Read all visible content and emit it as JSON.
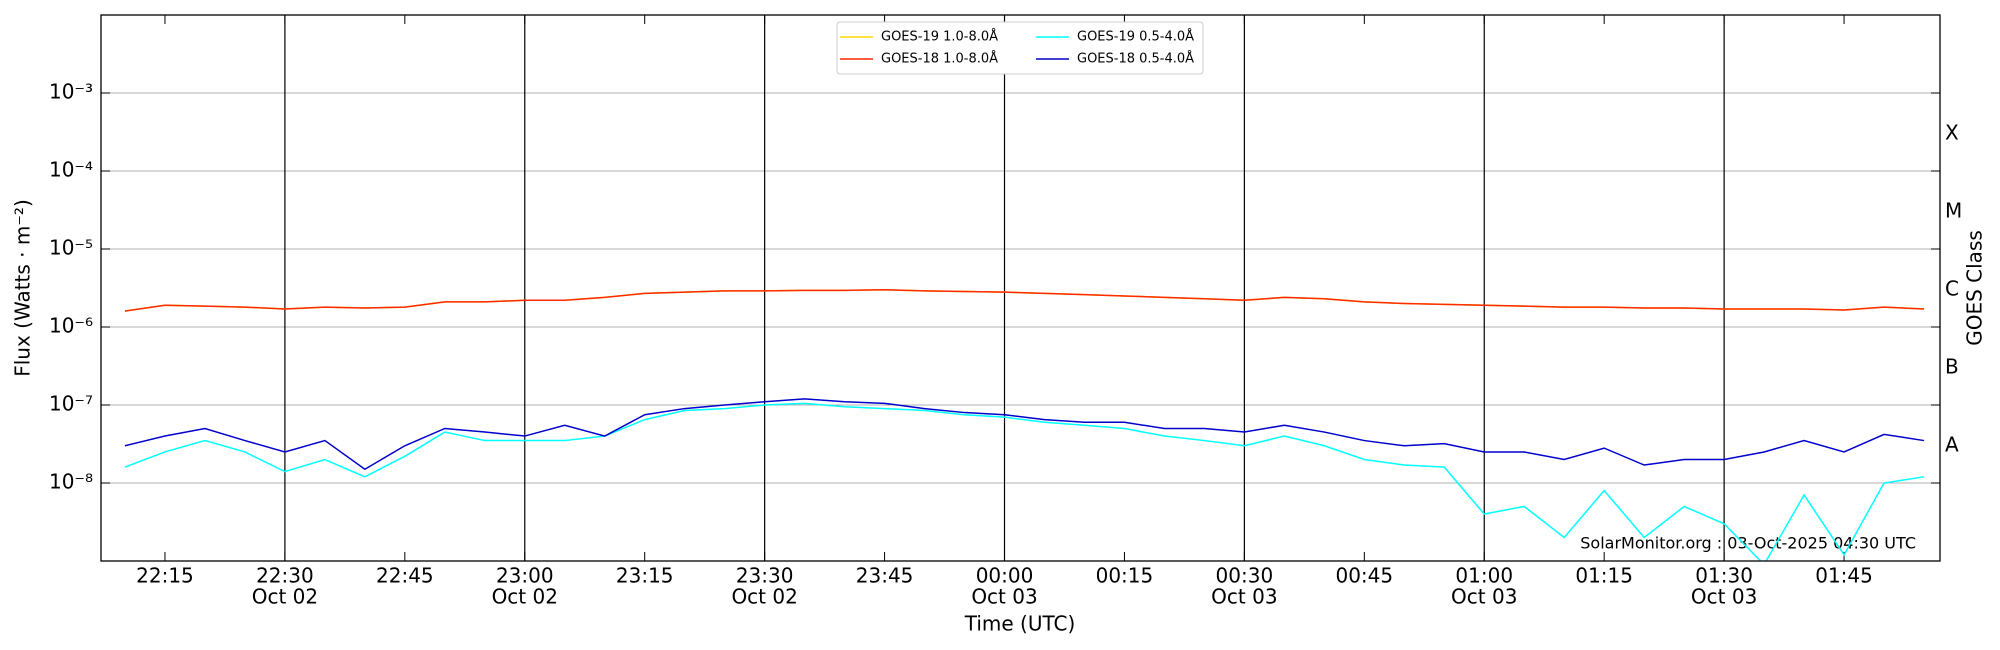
{
  "chart_data": {
    "type": "line",
    "xlabel": "Time (UTC)",
    "ylabel": "Flux (Watts · m⁻²)",
    "y2label": "GOES Class",
    "annotation": "SolarMonitor.org : 03-Oct-2025 04:30 UTC",
    "log_y": true,
    "grid": true,
    "legend": "upper center",
    "xlim": [
      "Oct 02 22:07",
      "Oct 03 01:57"
    ],
    "ylim": [
      1e-09,
      0.01
    ],
    "y2lim": [
      1e-09,
      0.01
    ],
    "yticks": [
      {
        "value": 1e-08,
        "label": "10⁻⁸"
      },
      {
        "value": 1e-07,
        "label": "10⁻⁷"
      },
      {
        "value": 1e-06,
        "label": "10⁻⁶"
      },
      {
        "value": 1e-05,
        "label": "10⁻⁵"
      },
      {
        "value": 0.0001,
        "label": "10⁻⁴"
      },
      {
        "value": 0.001,
        "label": "10⁻³"
      }
    ],
    "y2ticks": [
      {
        "value": 3e-08,
        "label": "A"
      },
      {
        "value": 3e-07,
        "label": "B"
      },
      {
        "value": 3e-06,
        "label": "C"
      },
      {
        "value": 3e-05,
        "label": "M"
      },
      {
        "value": 0.0003,
        "label": "X"
      }
    ],
    "xticks": [
      {
        "value": "Oct 02 22:15",
        "label": "22:15"
      },
      {
        "value": "Oct 02 22:30",
        "label": "22:30",
        "date": "Oct 02"
      },
      {
        "value": "Oct 02 22:45",
        "label": "22:45"
      },
      {
        "value": "Oct 02 23:00",
        "label": "23:00",
        "date": "Oct 02"
      },
      {
        "value": "Oct 02 23:15",
        "label": "23:15"
      },
      {
        "value": "Oct 02 23:30",
        "label": "23:30",
        "date": "Oct 02"
      },
      {
        "value": "Oct 02 23:45",
        "label": "23:45"
      },
      {
        "value": "Oct 03 00:00",
        "label": "00:00",
        "date": "Oct 03"
      },
      {
        "value": "Oct 03 00:15",
        "label": "00:15"
      },
      {
        "value": "Oct 03 00:30",
        "label": "00:30",
        "date": "Oct 03"
      },
      {
        "value": "Oct 03 00:45",
        "label": "00:45"
      },
      {
        "value": "Oct 03 01:00",
        "label": "01:00",
        "date": "Oct 03"
      },
      {
        "value": "Oct 03 01:15",
        "label": "01:15"
      },
      {
        "value": "Oct 03 01:30",
        "label": "01:30",
        "date": "Oct 03"
      },
      {
        "value": "Oct 03 01:45",
        "label": "01:45"
      }
    ],
    "x": [
      "Oct 02 22:10",
      "Oct 02 22:15",
      "Oct 02 22:20",
      "Oct 02 22:25",
      "Oct 02 22:30",
      "Oct 02 22:35",
      "Oct 02 22:40",
      "Oct 02 22:45",
      "Oct 02 22:50",
      "Oct 02 22:55",
      "Oct 02 23:00",
      "Oct 02 23:05",
      "Oct 02 23:10",
      "Oct 02 23:15",
      "Oct 02 23:20",
      "Oct 02 23:25",
      "Oct 02 23:30",
      "Oct 02 23:35",
      "Oct 02 23:40",
      "Oct 02 23:45",
      "Oct 02 23:50",
      "Oct 02 23:55",
      "Oct 03 00:00",
      "Oct 03 00:05",
      "Oct 03 00:10",
      "Oct 03 00:15",
      "Oct 03 00:20",
      "Oct 03 00:25",
      "Oct 03 00:30",
      "Oct 03 00:35",
      "Oct 03 00:40",
      "Oct 03 00:45",
      "Oct 03 00:50",
      "Oct 03 00:55",
      "Oct 03 01:00",
      "Oct 03 01:05",
      "Oct 03 01:10",
      "Oct 03 01:15",
      "Oct 03 01:20",
      "Oct 03 01:25",
      "Oct 03 01:30",
      "Oct 03 01:35",
      "Oct 03 01:40",
      "Oct 03 01:45",
      "Oct 03 01:50",
      "Oct 03 01:55"
    ],
    "series": [
      {
        "name": "GOES-19 1.0-8.0Å",
        "color": "#ffd700",
        "values": [
          1.6e-06,
          1.9e-06,
          1.85e-06,
          1.8e-06,
          1.7e-06,
          1.8e-06,
          1.75e-06,
          1.8e-06,
          2.1e-06,
          2.1e-06,
          2.2e-06,
          2.2e-06,
          2.4e-06,
          2.7e-06,
          2.8e-06,
          2.9e-06,
          2.9e-06,
          2.95e-06,
          2.95e-06,
          3e-06,
          2.9e-06,
          2.85e-06,
          2.8e-06,
          2.7e-06,
          2.6e-06,
          2.5e-06,
          2.4e-06,
          2.3e-06,
          2.2e-06,
          2.4e-06,
          2.3e-06,
          2.1e-06,
          2e-06,
          1.95e-06,
          1.9e-06,
          1.85e-06,
          1.8e-06,
          1.8e-06,
          1.75e-06,
          1.75e-06,
          1.7e-06,
          1.7e-06,
          1.7e-06,
          1.65e-06,
          1.8e-06,
          1.7e-06
        ]
      },
      {
        "name": "GOES-18 1.0-8.0Å",
        "color": "#ff2a00",
        "values": [
          1.6e-06,
          1.9e-06,
          1.85e-06,
          1.8e-06,
          1.7e-06,
          1.8e-06,
          1.75e-06,
          1.8e-06,
          2.1e-06,
          2.1e-06,
          2.2e-06,
          2.2e-06,
          2.4e-06,
          2.7e-06,
          2.8e-06,
          2.9e-06,
          2.9e-06,
          2.95e-06,
          2.95e-06,
          3e-06,
          2.9e-06,
          2.85e-06,
          2.8e-06,
          2.7e-06,
          2.6e-06,
          2.5e-06,
          2.4e-06,
          2.3e-06,
          2.2e-06,
          2.4e-06,
          2.3e-06,
          2.1e-06,
          2e-06,
          1.95e-06,
          1.9e-06,
          1.85e-06,
          1.8e-06,
          1.8e-06,
          1.75e-06,
          1.75e-06,
          1.7e-06,
          1.7e-06,
          1.7e-06,
          1.65e-06,
          1.8e-06,
          1.7e-06
        ]
      },
      {
        "name": "GOES-19 0.5-4.0Å",
        "color": "#00ffff",
        "values": [
          1.6e-08,
          2.5e-08,
          3.5e-08,
          2.5e-08,
          1.4e-08,
          2e-08,
          1.2e-08,
          2.2e-08,
          4.5e-08,
          3.5e-08,
          3.5e-08,
          3.5e-08,
          4e-08,
          6.5e-08,
          8.5e-08,
          9e-08,
          1e-07,
          1.05e-07,
          9.5e-08,
          9e-08,
          8.5e-08,
          7.5e-08,
          7e-08,
          6e-08,
          5.5e-08,
          5e-08,
          4e-08,
          3.5e-08,
          3e-08,
          4e-08,
          3e-08,
          2e-08,
          1.7e-08,
          1.6e-08,
          4e-09,
          5e-09,
          2e-09,
          8e-09,
          2e-09,
          5e-09,
          3e-09,
          9e-10,
          7e-09,
          1.2e-09,
          1e-08,
          1.2e-08
        ]
      },
      {
        "name": "GOES-18 0.5-4.0Å",
        "color": "#0000cc",
        "values": [
          3e-08,
          4e-08,
          5e-08,
          3.5e-08,
          2.5e-08,
          3.5e-08,
          1.5e-08,
          3e-08,
          5e-08,
          4.5e-08,
          4e-08,
          5.5e-08,
          4e-08,
          7.5e-08,
          9e-08,
          1e-07,
          1.1e-07,
          1.2e-07,
          1.1e-07,
          1.05e-07,
          9e-08,
          8e-08,
          7.5e-08,
          6.5e-08,
          6e-08,
          6e-08,
          5e-08,
          5e-08,
          4.5e-08,
          5.5e-08,
          4.5e-08,
          3.5e-08,
          3e-08,
          3.2e-08,
          2.5e-08,
          2.5e-08,
          2e-08,
          2.8e-08,
          1.7e-08,
          2e-08,
          2e-08,
          2.5e-08,
          3.5e-08,
          2.5e-08,
          4.2e-08,
          3.5e-08
        ]
      }
    ]
  }
}
